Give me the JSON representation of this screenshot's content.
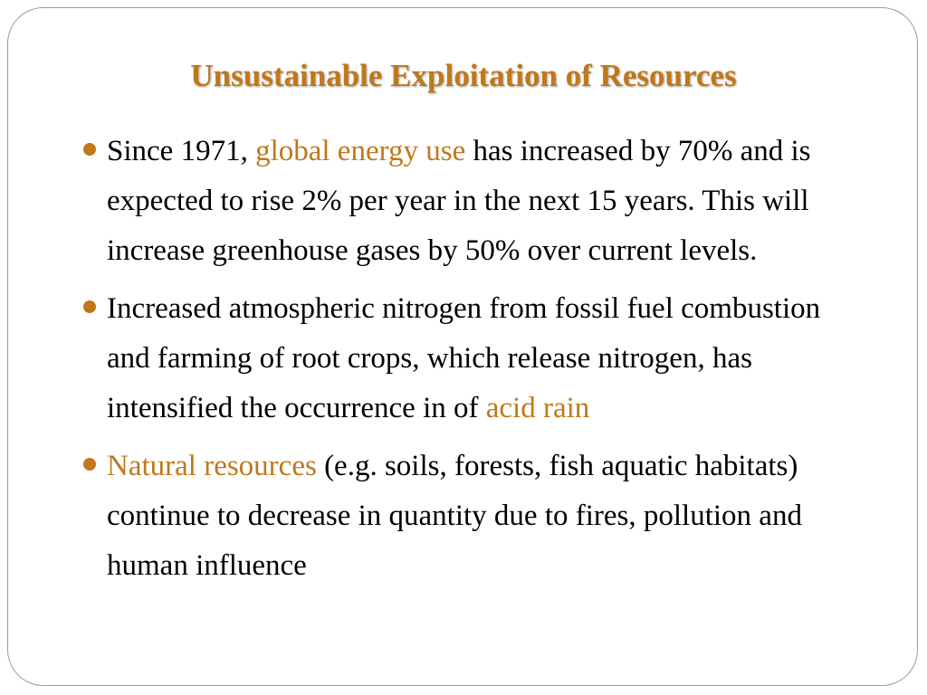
{
  "slide": {
    "title": "Unsustainable Exploitation of Resources",
    "accent_color": "#c0781a",
    "bullets": [
      {
        "prefix": "Since 1971, ",
        "highlight": "global energy use",
        "suffix": " has increased by 70% and is expected to rise 2% per year in the next 15 years. This will increase greenhouse gases by 50% over current levels."
      },
      {
        "prefix": "Increased atmospheric nitrogen from fossil fuel combustion and farming of root crops, which release nitrogen, has intensified the occurrence in of ",
        "highlight": "acid rain",
        "suffix": ""
      },
      {
        "prefix": "",
        "highlight": "Natural resources",
        "suffix": " (e.g. soils, forests, fish aquatic habitats) continue to decrease in quantity due to fires, pollution and human influence"
      }
    ]
  }
}
